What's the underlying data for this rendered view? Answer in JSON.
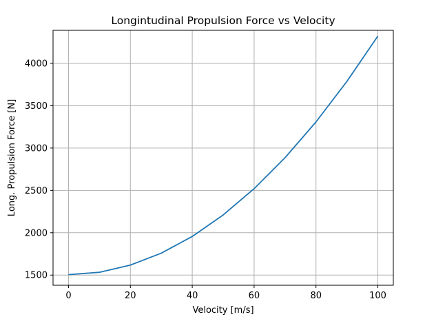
{
  "chart_data": {
    "type": "line",
    "title": "Longintudinal Propulsion Force vs Velocity",
    "xlabel": "Velocity [m/s]",
    "ylabel": "Long. Propulsion Force [N]",
    "xlim": [
      -5,
      105
    ],
    "ylim": [
      1380,
      4390
    ],
    "xticks": [
      0,
      20,
      40,
      60,
      80,
      100
    ],
    "yticks": [
      1500,
      2000,
      2500,
      3000,
      3500,
      4000
    ],
    "xtick_labels": [
      "0",
      "20",
      "40",
      "60",
      "80",
      100
    ],
    "ytick_labels": [
      "1500",
      "2000",
      "2500",
      "3000",
      "3500",
      "4000"
    ],
    "grid": true,
    "series": [
      {
        "color": "#1f77b4",
        "x": [
          0,
          10,
          20,
          30,
          40,
          50,
          60,
          70,
          80,
          90,
          100
        ],
        "y": [
          1505,
          1533,
          1618,
          1759,
          1956,
          2210,
          2520,
          2886,
          3308,
          3787,
          4322
        ]
      }
    ]
  }
}
